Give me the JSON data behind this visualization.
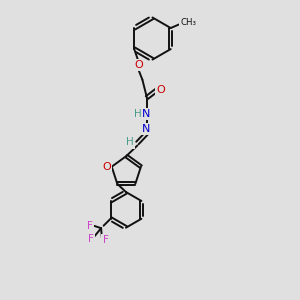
{
  "background_color": "#e0e0e0",
  "bond_color": "#111111",
  "oxygen_color": "#cc0000",
  "nitrogen_color": "#0000cc",
  "fluorine_color": "#cc44cc",
  "hydrogen_color": "#4a9a8a",
  "figsize": [
    3.0,
    3.0
  ],
  "dpi": 100,
  "xlim": [
    0,
    6
  ],
  "ylim": [
    0,
    12
  ]
}
